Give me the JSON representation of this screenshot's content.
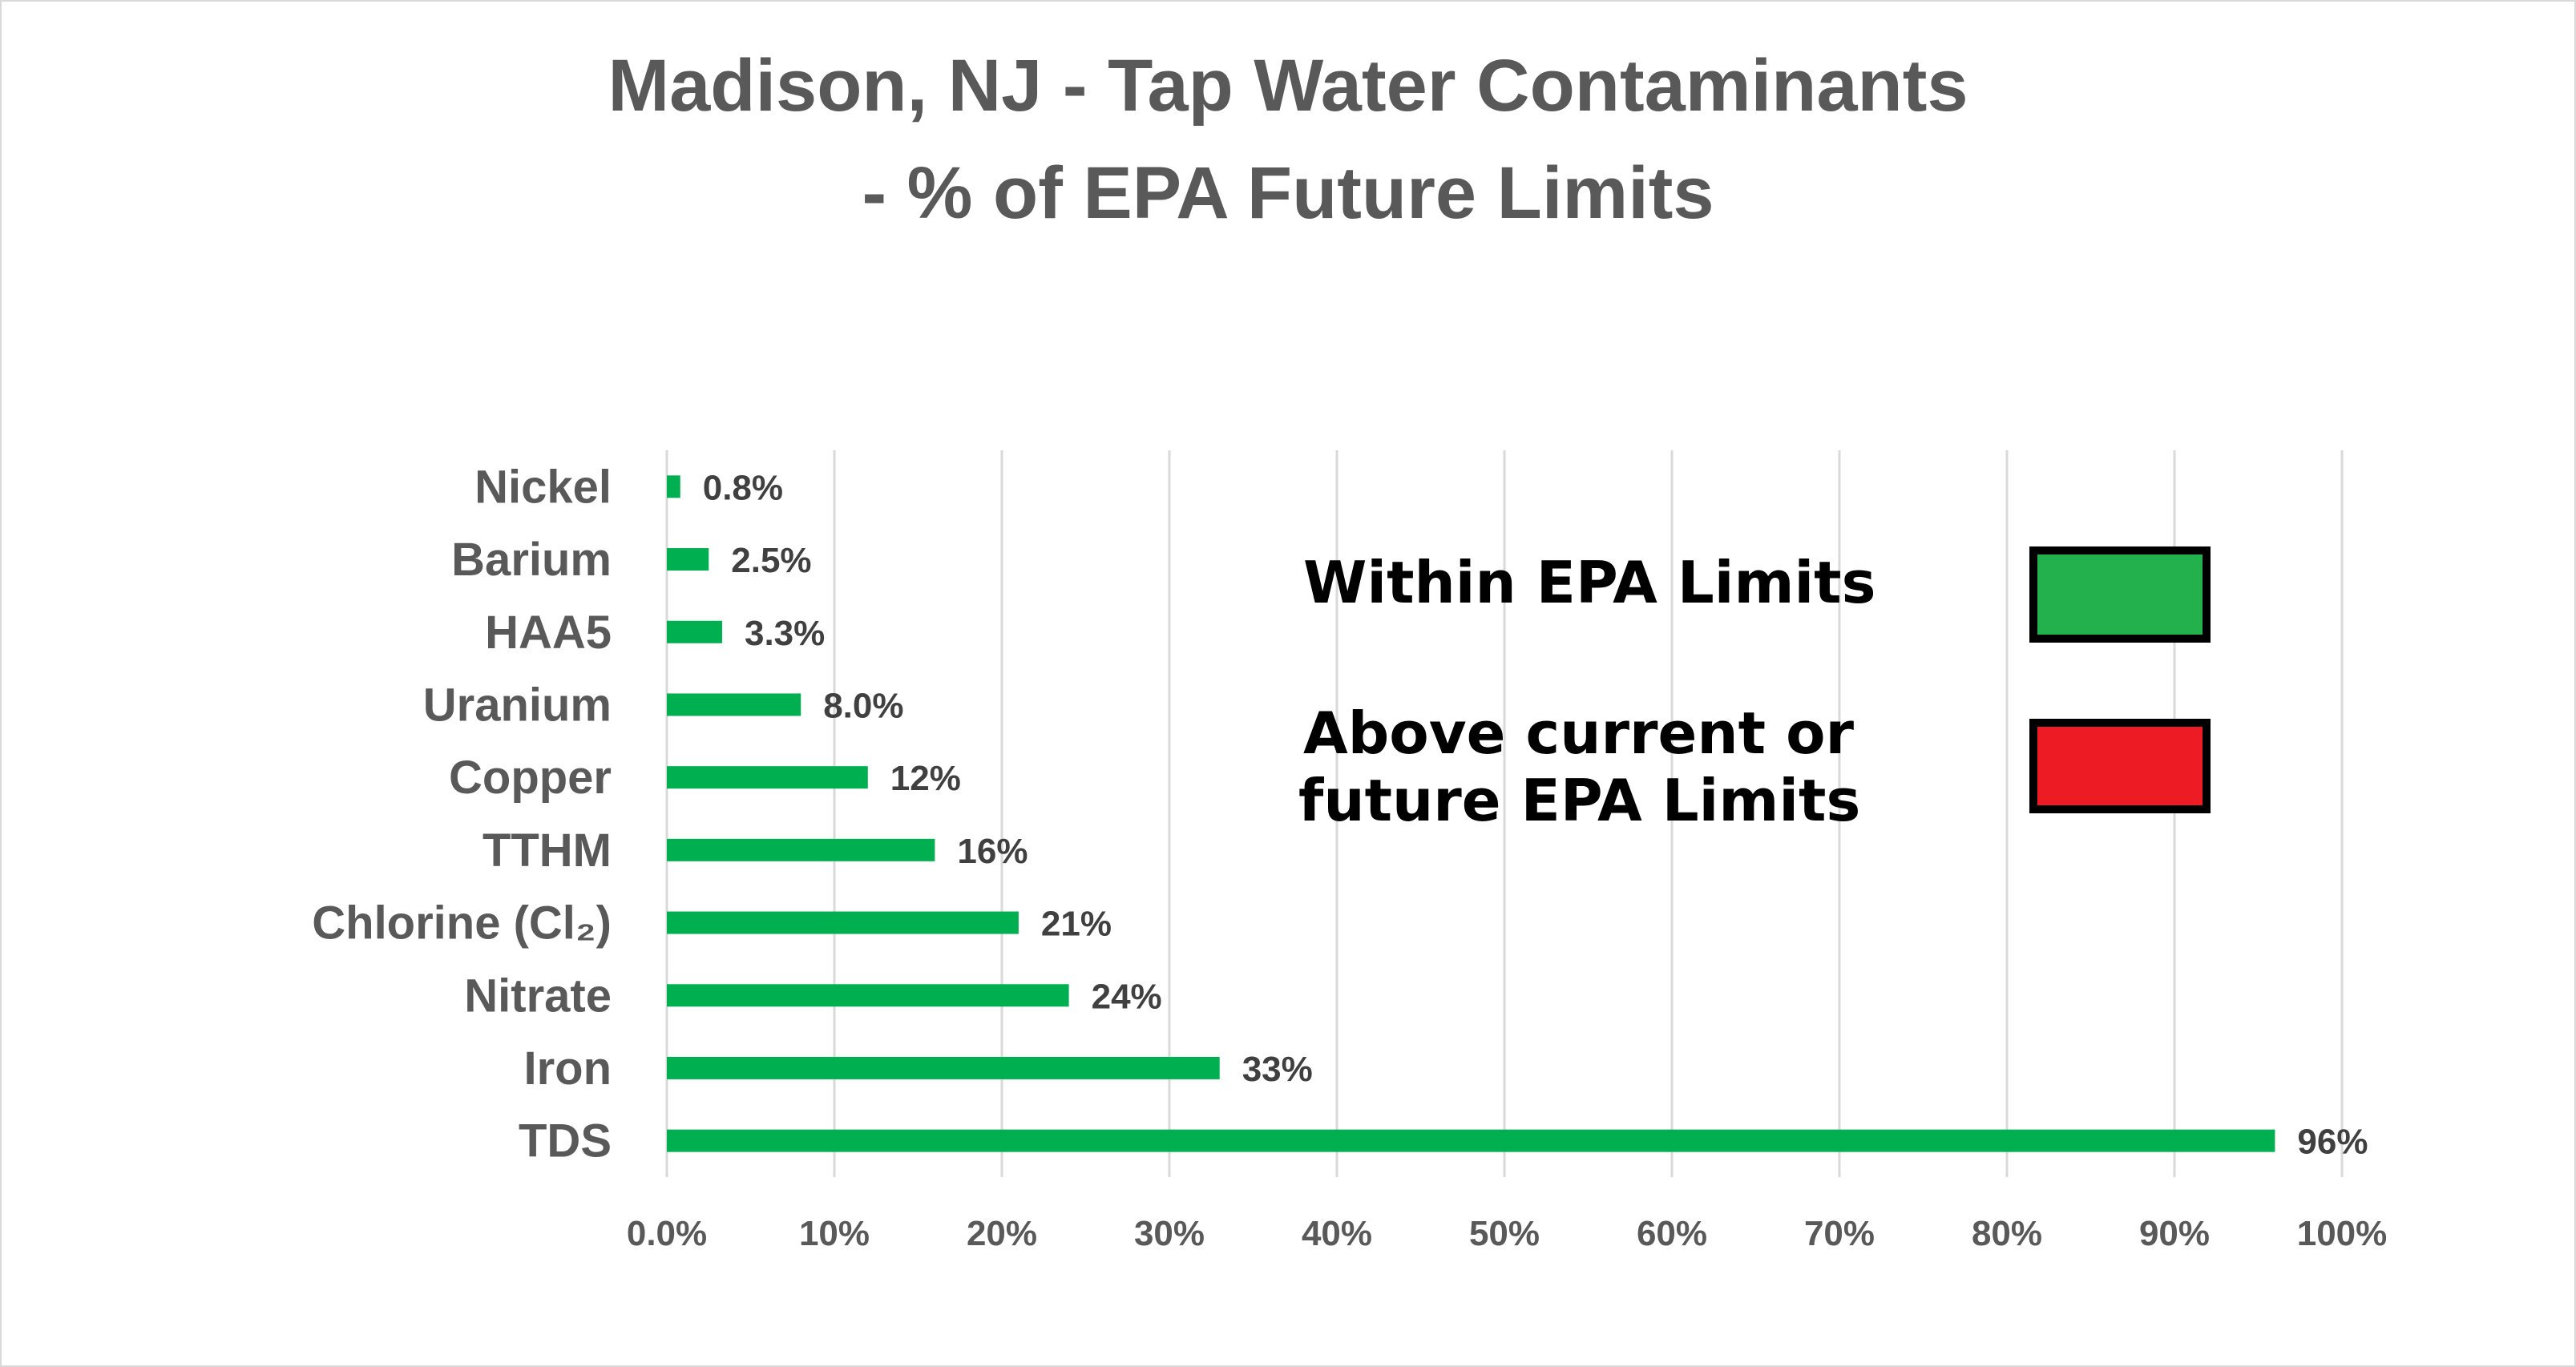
{
  "chart_data": {
    "type": "bar",
    "orientation": "horizontal",
    "title_lines": [
      "Madison, NJ - Tap Water Contaminants",
      "- % of EPA Future Limits"
    ],
    "categories": [
      "Nickel",
      "Barium",
      "HAA5",
      "Uranium",
      "Copper",
      "TTHM",
      "Chlorine (Cl₂)",
      "Nitrate",
      "Iron",
      "TDS"
    ],
    "values": [
      0.8,
      2.5,
      3.3,
      8.0,
      12,
      16,
      21,
      24,
      33,
      96
    ],
    "data_labels": [
      "0.8%",
      "2.5%",
      "3.3%",
      "8.0%",
      "12%",
      "16%",
      "21%",
      "24%",
      "33%",
      "96%"
    ],
    "xlim": [
      0,
      100
    ],
    "x_ticks": [
      0,
      10,
      20,
      30,
      40,
      50,
      60,
      70,
      80,
      90,
      100
    ],
    "x_tick_labels": [
      "0.0%",
      "10%",
      "20%",
      "30%",
      "40%",
      "50%",
      "60%",
      "70%",
      "80%",
      "90%",
      "100%"
    ],
    "xlabel": "",
    "ylabel": "",
    "grid": "vertical",
    "bar_color": "#00b050",
    "legend": {
      "placement": "right",
      "items": [
        {
          "lines": [
            "Within  EPA Limits"
          ],
          "color": "#22b14c"
        },
        {
          "lines": [
            "Above current or",
            "future EPA Limits"
          ],
          "color": "#ed1c24"
        }
      ]
    }
  }
}
